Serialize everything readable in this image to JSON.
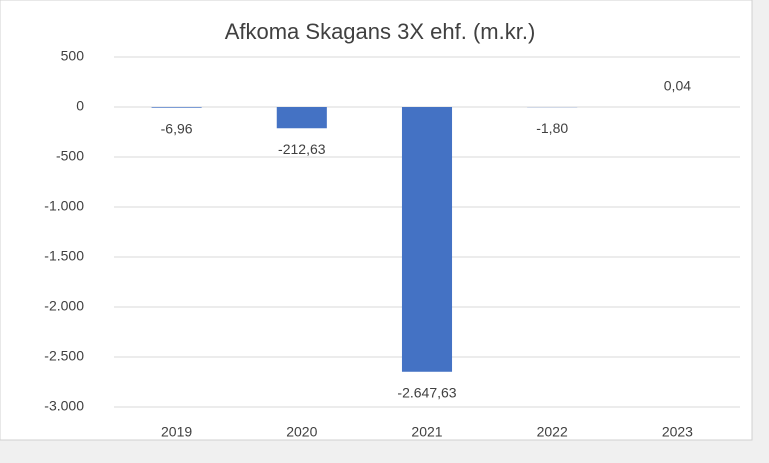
{
  "chart_data": {
    "type": "bar",
    "title": "Afkoma Skagans 3X ehf. (m.kr.)",
    "categories": [
      "2019",
      "2020",
      "2021",
      "2022",
      "2023"
    ],
    "values": [
      -6.96,
      -212.63,
      -2647.63,
      -1.8,
      0.04
    ],
    "value_labels": [
      "-6,96",
      "-212,63",
      "-2.647,63",
      "-1,80",
      "0,04"
    ],
    "color": "#4472c4",
    "ylim": [
      -3000,
      500
    ],
    "yticks": [
      500,
      0,
      -500,
      {
        "value": -1000,
        "label": "-1.000"
      },
      {
        "value": -1500,
        "label": "-1.500"
      },
      {
        "value": -2000,
        "label": "-2.000"
      },
      {
        "value": -2500,
        "label": "-2.500"
      },
      {
        "value": -3000,
        "label": "-3.000"
      }
    ],
    "grid": true
  }
}
